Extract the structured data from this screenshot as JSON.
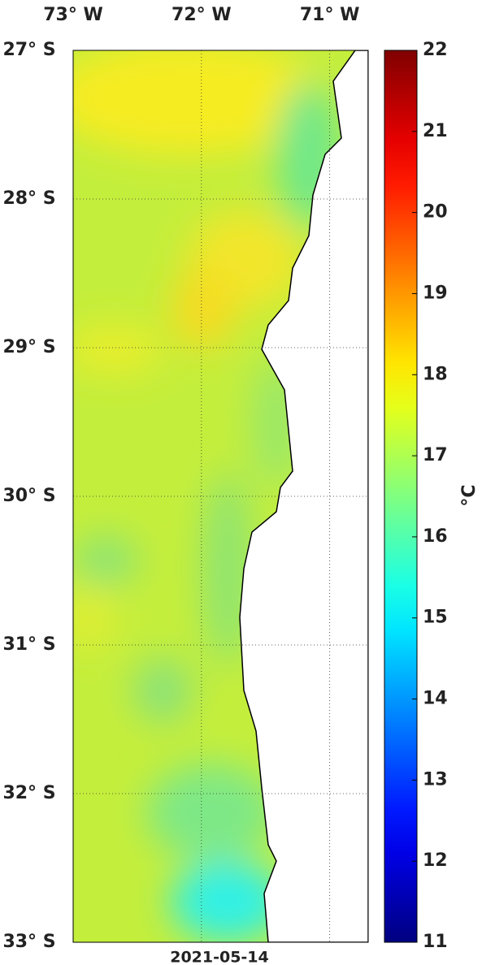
{
  "map": {
    "xlim": [
      -73,
      -70.7
    ],
    "xticks": [
      {
        "value": -73,
        "label": "73° W"
      },
      {
        "value": -72,
        "label": "72° W"
      },
      {
        "value": -71,
        "label": "71° W"
      }
    ],
    "ylim": [
      -33,
      -27
    ],
    "yticks": [
      {
        "value": -27,
        "label": "27° S"
      },
      {
        "value": -28,
        "label": "28° S"
      },
      {
        "value": -29,
        "label": "29° S"
      },
      {
        "value": -30,
        "label": "30° S"
      },
      {
        "value": -31,
        "label": "31° S"
      },
      {
        "value": -32,
        "label": "32° S"
      },
      {
        "value": -33,
        "label": "33° S"
      }
    ],
    "date": "2021-05-14"
  },
  "colorbar": {
    "lim": [
      11,
      22
    ],
    "ticks": [
      11,
      12,
      13,
      14,
      15,
      16,
      17,
      18,
      19,
      20,
      21,
      22
    ],
    "label": "°C"
  }
}
